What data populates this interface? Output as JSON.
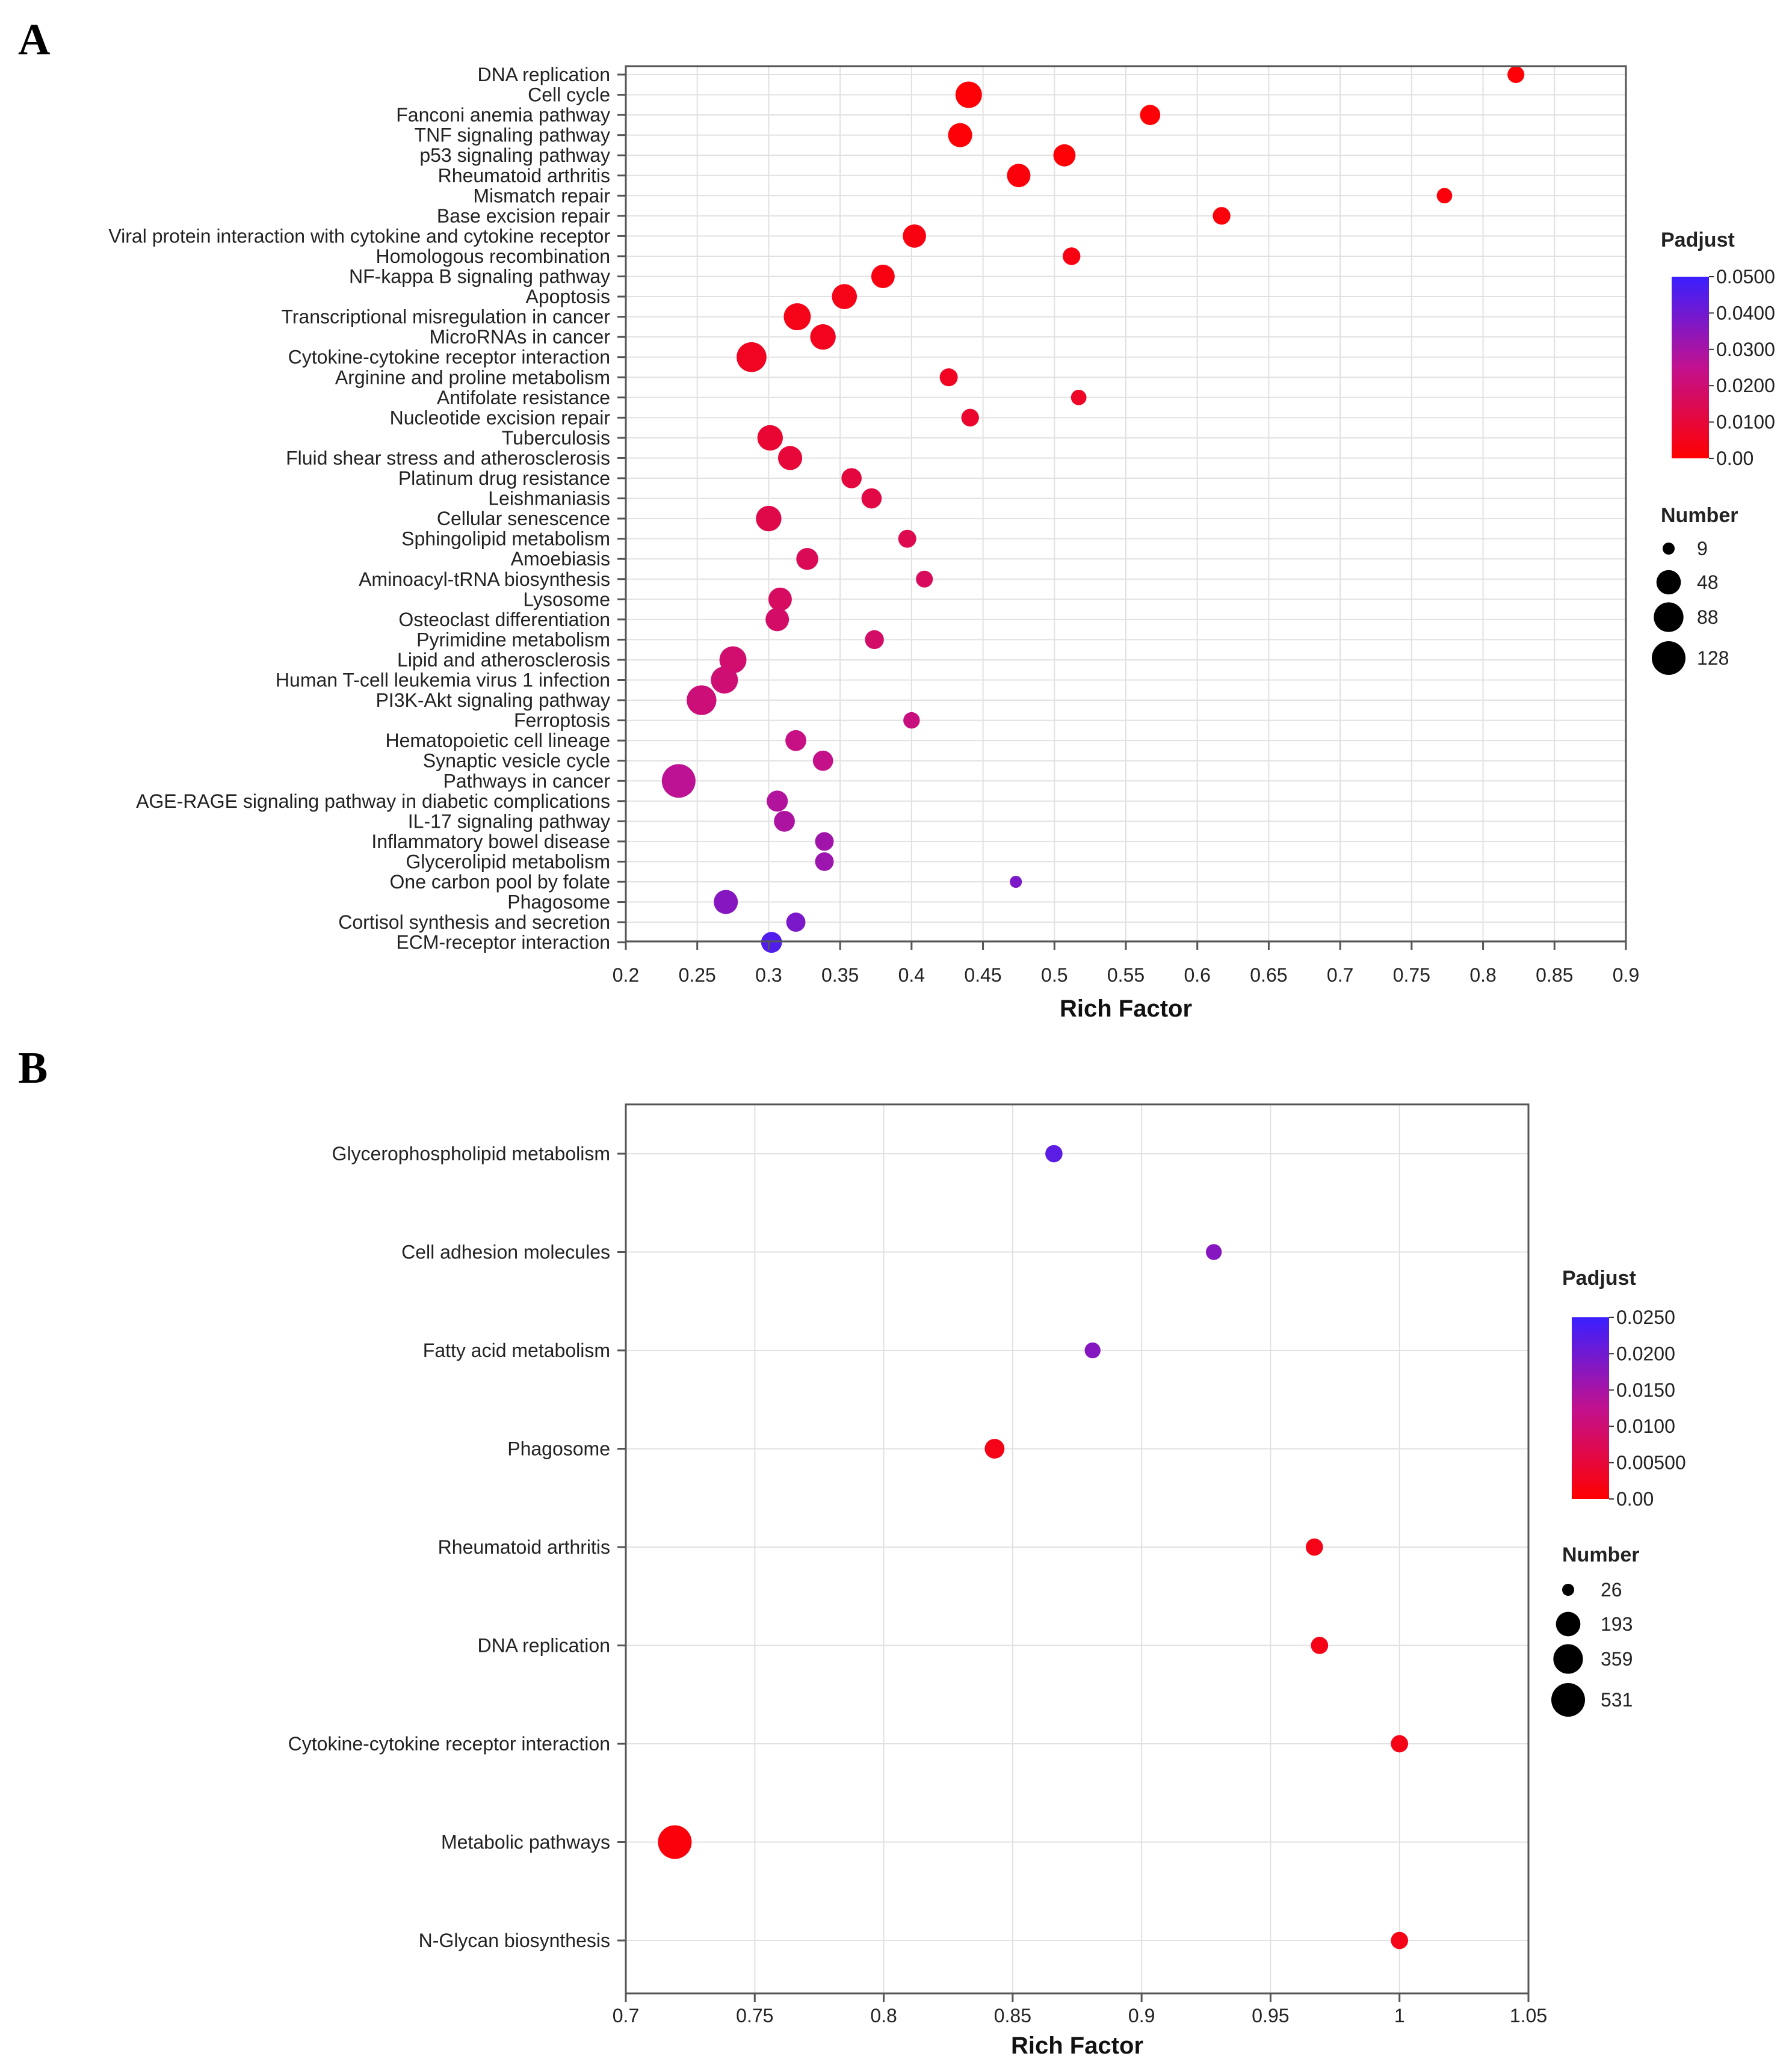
{
  "panels": [
    {
      "letter": "A",
      "chart_data": {
        "type": "scatter",
        "title": "",
        "xlabel": "Rich Factor",
        "ylabel": "",
        "xlim": [
          0.2,
          0.9
        ],
        "xticks": [
          0.2,
          0.25,
          0.3,
          0.35,
          0.4,
          0.45,
          0.5,
          0.55,
          0.6,
          0.65,
          0.7,
          0.75,
          0.8,
          0.85,
          0.9
        ],
        "grid": true,
        "legend_position": "right",
        "color_legend": {
          "title": "Padjust",
          "labels": [
            "0.0500",
            "0.0400",
            "0.0300",
            "0.0200",
            "0.0100",
            "0.00"
          ],
          "min": 0,
          "max": 0.05,
          "low_color": "#ff0000",
          "high_color": "#3a1fff"
        },
        "size_legend": {
          "title": "Number",
          "values": [
            9,
            48,
            88,
            128
          ]
        },
        "points": [
          {
            "term": "DNA replication",
            "x": 0.823,
            "size": 15,
            "padj": 0.001
          },
          {
            "term": "Cell cycle",
            "x": 0.44,
            "size": 62,
            "padj": 0.001
          },
          {
            "term": "Fanconi anemia pathway",
            "x": 0.567,
            "size": 26,
            "padj": 0.001
          },
          {
            "term": "TNF signaling pathway",
            "x": 0.434,
            "size": 46,
            "padj": 0.001
          },
          {
            "term": "p53 signaling pathway",
            "x": 0.507,
            "size": 35,
            "padj": 0.001
          },
          {
            "term": "Rheumatoid arthritis",
            "x": 0.475,
            "size": 42,
            "padj": 0.002
          },
          {
            "term": "Mismatch repair",
            "x": 0.773,
            "size": 12,
            "padj": 0.002
          },
          {
            "term": "Base excision repair",
            "x": 0.617,
            "size": 17,
            "padj": 0.002
          },
          {
            "term": "Viral protein interaction with cytokine and cytokine receptor",
            "x": 0.402,
            "size": 41,
            "padj": 0.003
          },
          {
            "term": "Homologous recombination",
            "x": 0.512,
            "size": 17,
            "padj": 0.003
          },
          {
            "term": "NF-kappa B signaling pathway",
            "x": 0.38,
            "size": 42,
            "padj": 0.003
          },
          {
            "term": "Apoptosis",
            "x": 0.353,
            "size": 52,
            "padj": 0.004
          },
          {
            "term": "Transcriptional misregulation in cancer",
            "x": 0.32,
            "size": 66,
            "padj": 0.004
          },
          {
            "term": "MicroRNAs in cancer",
            "x": 0.338,
            "size": 55,
            "padj": 0.005
          },
          {
            "term": "Cytokine-cytokine receptor interaction",
            "x": 0.288,
            "size": 90,
            "padj": 0.006
          },
          {
            "term": "Arginine and proline metabolism",
            "x": 0.426,
            "size": 18,
            "padj": 0.006
          },
          {
            "term": "Antifolate resistance",
            "x": 0.517,
            "size": 12,
            "padj": 0.007
          },
          {
            "term": "Nucleotide excision repair",
            "x": 0.441,
            "size": 17,
            "padj": 0.008
          },
          {
            "term": "Tuberculosis",
            "x": 0.301,
            "size": 55,
            "padj": 0.009
          },
          {
            "term": "Fluid shear stress and atherosclerosis",
            "x": 0.315,
            "size": 46,
            "padj": 0.01
          },
          {
            "term": "Platinum drug resistance",
            "x": 0.358,
            "size": 26,
            "padj": 0.011
          },
          {
            "term": "Leishmaniasis",
            "x": 0.372,
            "size": 26,
            "padj": 0.012
          },
          {
            "term": "Cellular senescence",
            "x": 0.3,
            "size": 55,
            "padj": 0.013
          },
          {
            "term": "Sphingolipid metabolism",
            "x": 0.397,
            "size": 18,
            "padj": 0.014
          },
          {
            "term": "Amoebiasis",
            "x": 0.327,
            "size": 34,
            "padj": 0.015
          },
          {
            "term": "Aminoacyl-tRNA biosynthesis",
            "x": 0.409,
            "size": 15,
            "padj": 0.016
          },
          {
            "term": "Lysosome",
            "x": 0.308,
            "size": 42,
            "padj": 0.017
          },
          {
            "term": "Osteoclast differentiation",
            "x": 0.306,
            "size": 42,
            "padj": 0.018
          },
          {
            "term": "Pyrimidine metabolism",
            "x": 0.374,
            "size": 21,
            "padj": 0.018
          },
          {
            "term": "Lipid and atherosclerosis",
            "x": 0.275,
            "size": 66,
            "padj": 0.019
          },
          {
            "term": "Human T-cell leukemia virus 1 infection",
            "x": 0.269,
            "size": 66,
            "padj": 0.02
          },
          {
            "term": "PI3K-Akt signaling pathway",
            "x": 0.253,
            "size": 88,
            "padj": 0.021
          },
          {
            "term": "Ferroptosis",
            "x": 0.4,
            "size": 14,
            "padj": 0.022
          },
          {
            "term": "Hematopoietic cell lineage",
            "x": 0.319,
            "size": 29,
            "padj": 0.023
          },
          {
            "term": "Synaptic vesicle cycle",
            "x": 0.338,
            "size": 26,
            "padj": 0.024
          },
          {
            "term": "Pathways in cancer",
            "x": 0.237,
            "size": 128,
            "padj": 0.026
          },
          {
            "term": "AGE-RAGE signaling pathway in diabetic complications",
            "x": 0.306,
            "size": 30,
            "padj": 0.028
          },
          {
            "term": "IL-17 signaling pathway",
            "x": 0.311,
            "size": 29,
            "padj": 0.029
          },
          {
            "term": "Inflammatory bowel disease",
            "x": 0.339,
            "size": 20,
            "padj": 0.031
          },
          {
            "term": "Glycerolipid metabolism",
            "x": 0.339,
            "size": 20,
            "padj": 0.032
          },
          {
            "term": "One carbon pool by folate",
            "x": 0.473,
            "size": 9,
            "padj": 0.038
          },
          {
            "term": "Phagosome",
            "x": 0.27,
            "size": 46,
            "padj": 0.036
          },
          {
            "term": "Cortisol synthesis and secretion",
            "x": 0.319,
            "size": 22,
            "padj": 0.038
          },
          {
            "term": "ECM-receptor interaction",
            "x": 0.302,
            "size": 29,
            "padj": 0.046
          }
        ]
      }
    },
    {
      "letter": "B",
      "chart_data": {
        "type": "scatter",
        "title": "",
        "xlabel": "Rich Factor",
        "ylabel": "",
        "xlim": [
          0.7,
          1.05
        ],
        "xticks": [
          0.7,
          0.75,
          0.8,
          0.85,
          0.9,
          0.95,
          1,
          1.05
        ],
        "grid": true,
        "legend_position": "right",
        "color_legend": {
          "title": "Padjust",
          "labels": [
            "0.0250",
            "0.0200",
            "0.0150",
            "0.0100",
            "0.00500",
            "0.00"
          ],
          "min": 0,
          "max": 0.025,
          "low_color": "#ff0000",
          "high_color": "#3a1fff"
        },
        "size_legend": {
          "title": "Number",
          "values": [
            26,
            193,
            359,
            531
          ]
        },
        "points": [
          {
            "term": "Glycerophospholipid metabolism",
            "x": 0.866,
            "size": 55,
            "padj": 0.022
          },
          {
            "term": "Cell adhesion molecules",
            "x": 0.928,
            "size": 42,
            "padj": 0.018
          },
          {
            "term": "Fatty acid metabolism",
            "x": 0.881,
            "size": 42,
            "padj": 0.018
          },
          {
            "term": "Phagosome",
            "x": 0.843,
            "size": 90,
            "padj": 0.002
          },
          {
            "term": "Rheumatoid arthritis",
            "x": 0.967,
            "size": 55,
            "padj": 0.002
          },
          {
            "term": "DNA replication",
            "x": 0.969,
            "size": 55,
            "padj": 0.002
          },
          {
            "term": "Cytokine-cytokine receptor interaction",
            "x": 1.0,
            "size": 55,
            "padj": 0.002
          },
          {
            "term": "Metabolic pathways",
            "x": 0.719,
            "size": 531,
            "padj": 0.001
          },
          {
            "term": "N-Glycan biosynthesis",
            "x": 1.0,
            "size": 55,
            "padj": 0.002
          }
        ]
      }
    }
  ]
}
